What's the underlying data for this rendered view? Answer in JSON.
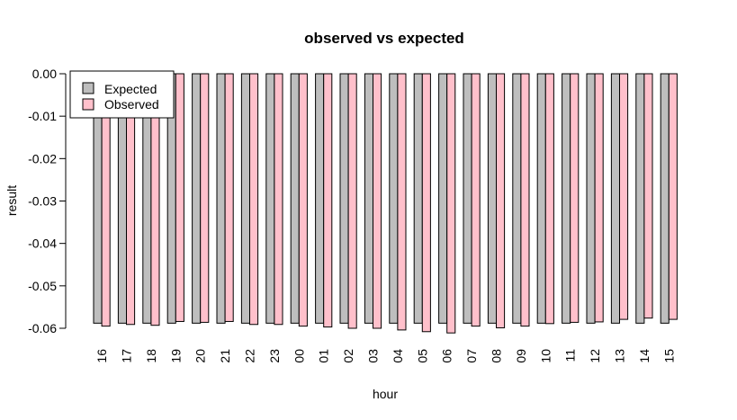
{
  "chart_data": {
    "type": "bar",
    "title": "observed vs expected",
    "xlabel": "hour",
    "ylabel": "result",
    "categories": [
      "16",
      "17",
      "18",
      "19",
      "20",
      "21",
      "22",
      "23",
      "00",
      "01",
      "02",
      "03",
      "04",
      "05",
      "06",
      "07",
      "08",
      "09",
      "10",
      "11",
      "12",
      "13",
      "14",
      "15"
    ],
    "series": [
      {
        "name": "Expected",
        "color": "#bebebe",
        "values": [
          -0.0588,
          -0.0588,
          -0.0588,
          -0.0588,
          -0.0588,
          -0.0588,
          -0.0588,
          -0.0588,
          -0.0588,
          -0.0588,
          -0.0588,
          -0.0588,
          -0.0588,
          -0.0588,
          -0.0588,
          -0.0588,
          -0.0588,
          -0.0588,
          -0.0588,
          -0.0588,
          -0.0588,
          -0.0588,
          -0.0588,
          -0.0588
        ]
      },
      {
        "name": "Observed",
        "color": "#ffc0cb",
        "values": [
          -0.0595,
          -0.0591,
          -0.0593,
          -0.0584,
          -0.0586,
          -0.0584,
          -0.0591,
          -0.0591,
          -0.0595,
          -0.0597,
          -0.06,
          -0.06,
          -0.0604,
          -0.0608,
          -0.0611,
          -0.0595,
          -0.0599,
          -0.0595,
          -0.0589,
          -0.0586,
          -0.0585,
          -0.0579,
          -0.0576,
          -0.0579
        ]
      }
    ],
    "ylim": [
      -0.06,
      0.0
    ],
    "yticks": [
      "0.00",
      "-0.01",
      "-0.02",
      "-0.03",
      "-0.04",
      "-0.05",
      "-0.06"
    ],
    "ytick_values": [
      0.0,
      -0.01,
      -0.02,
      -0.03,
      -0.04,
      -0.05,
      -0.06
    ],
    "grid": false,
    "legend_position": "top-left"
  }
}
